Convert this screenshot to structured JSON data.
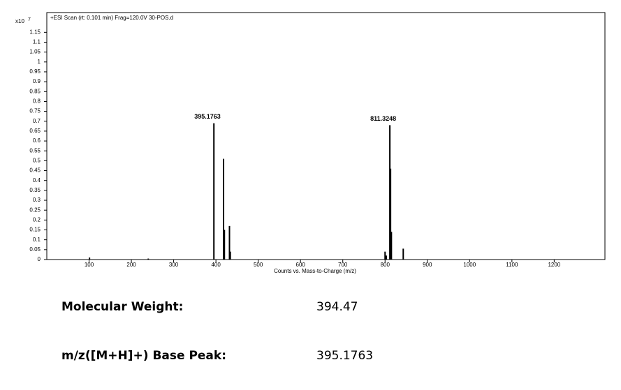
{
  "chart_data": {
    "type": "stick",
    "title": "+ESI Scan (rt: 0.101 min) Frag=120.0V 30-POS.d",
    "x_label": "Counts vs. Mass-to-Charge (m/z)",
    "y_multiplier": {
      "base": "x10",
      "exponent": "7"
    },
    "xlim": [
      0,
      1320
    ],
    "ylim": [
      0,
      1.25
    ],
    "xticks": [
      100,
      200,
      300,
      400,
      500,
      600,
      700,
      800,
      900,
      1000,
      1100,
      1200
    ],
    "yticks": [
      0,
      0.05,
      0.1,
      0.15,
      0.2,
      0.25,
      0.3,
      0.35,
      0.4,
      0.45,
      0.5,
      0.55,
      0.6,
      0.65,
      0.7,
      0.75,
      0.8,
      0.85,
      0.9,
      0.95,
      1,
      1.05,
      1.1,
      1.15
    ],
    "series": [
      {
        "color": "#000000",
        "x": [
          101,
          240,
          395.1763,
          418,
          420,
          432,
          434,
          800,
          803,
          811.3248,
          813,
          815,
          843
        ],
        "values": [
          0.01,
          0.005,
          0.69,
          0.51,
          0.15,
          0.17,
          0.04,
          0.04,
          0.02,
          0.68,
          0.46,
          0.14,
          0.055
        ],
        "labeled_peaks": [
          2,
          9
        ]
      }
    ]
  },
  "info": {
    "rows": [
      [
        "Molecular Weight:",
        "394.47"
      ],
      [
        "m/z([M+H]+) Base Peak:",
        "395.1763"
      ]
    ]
  }
}
